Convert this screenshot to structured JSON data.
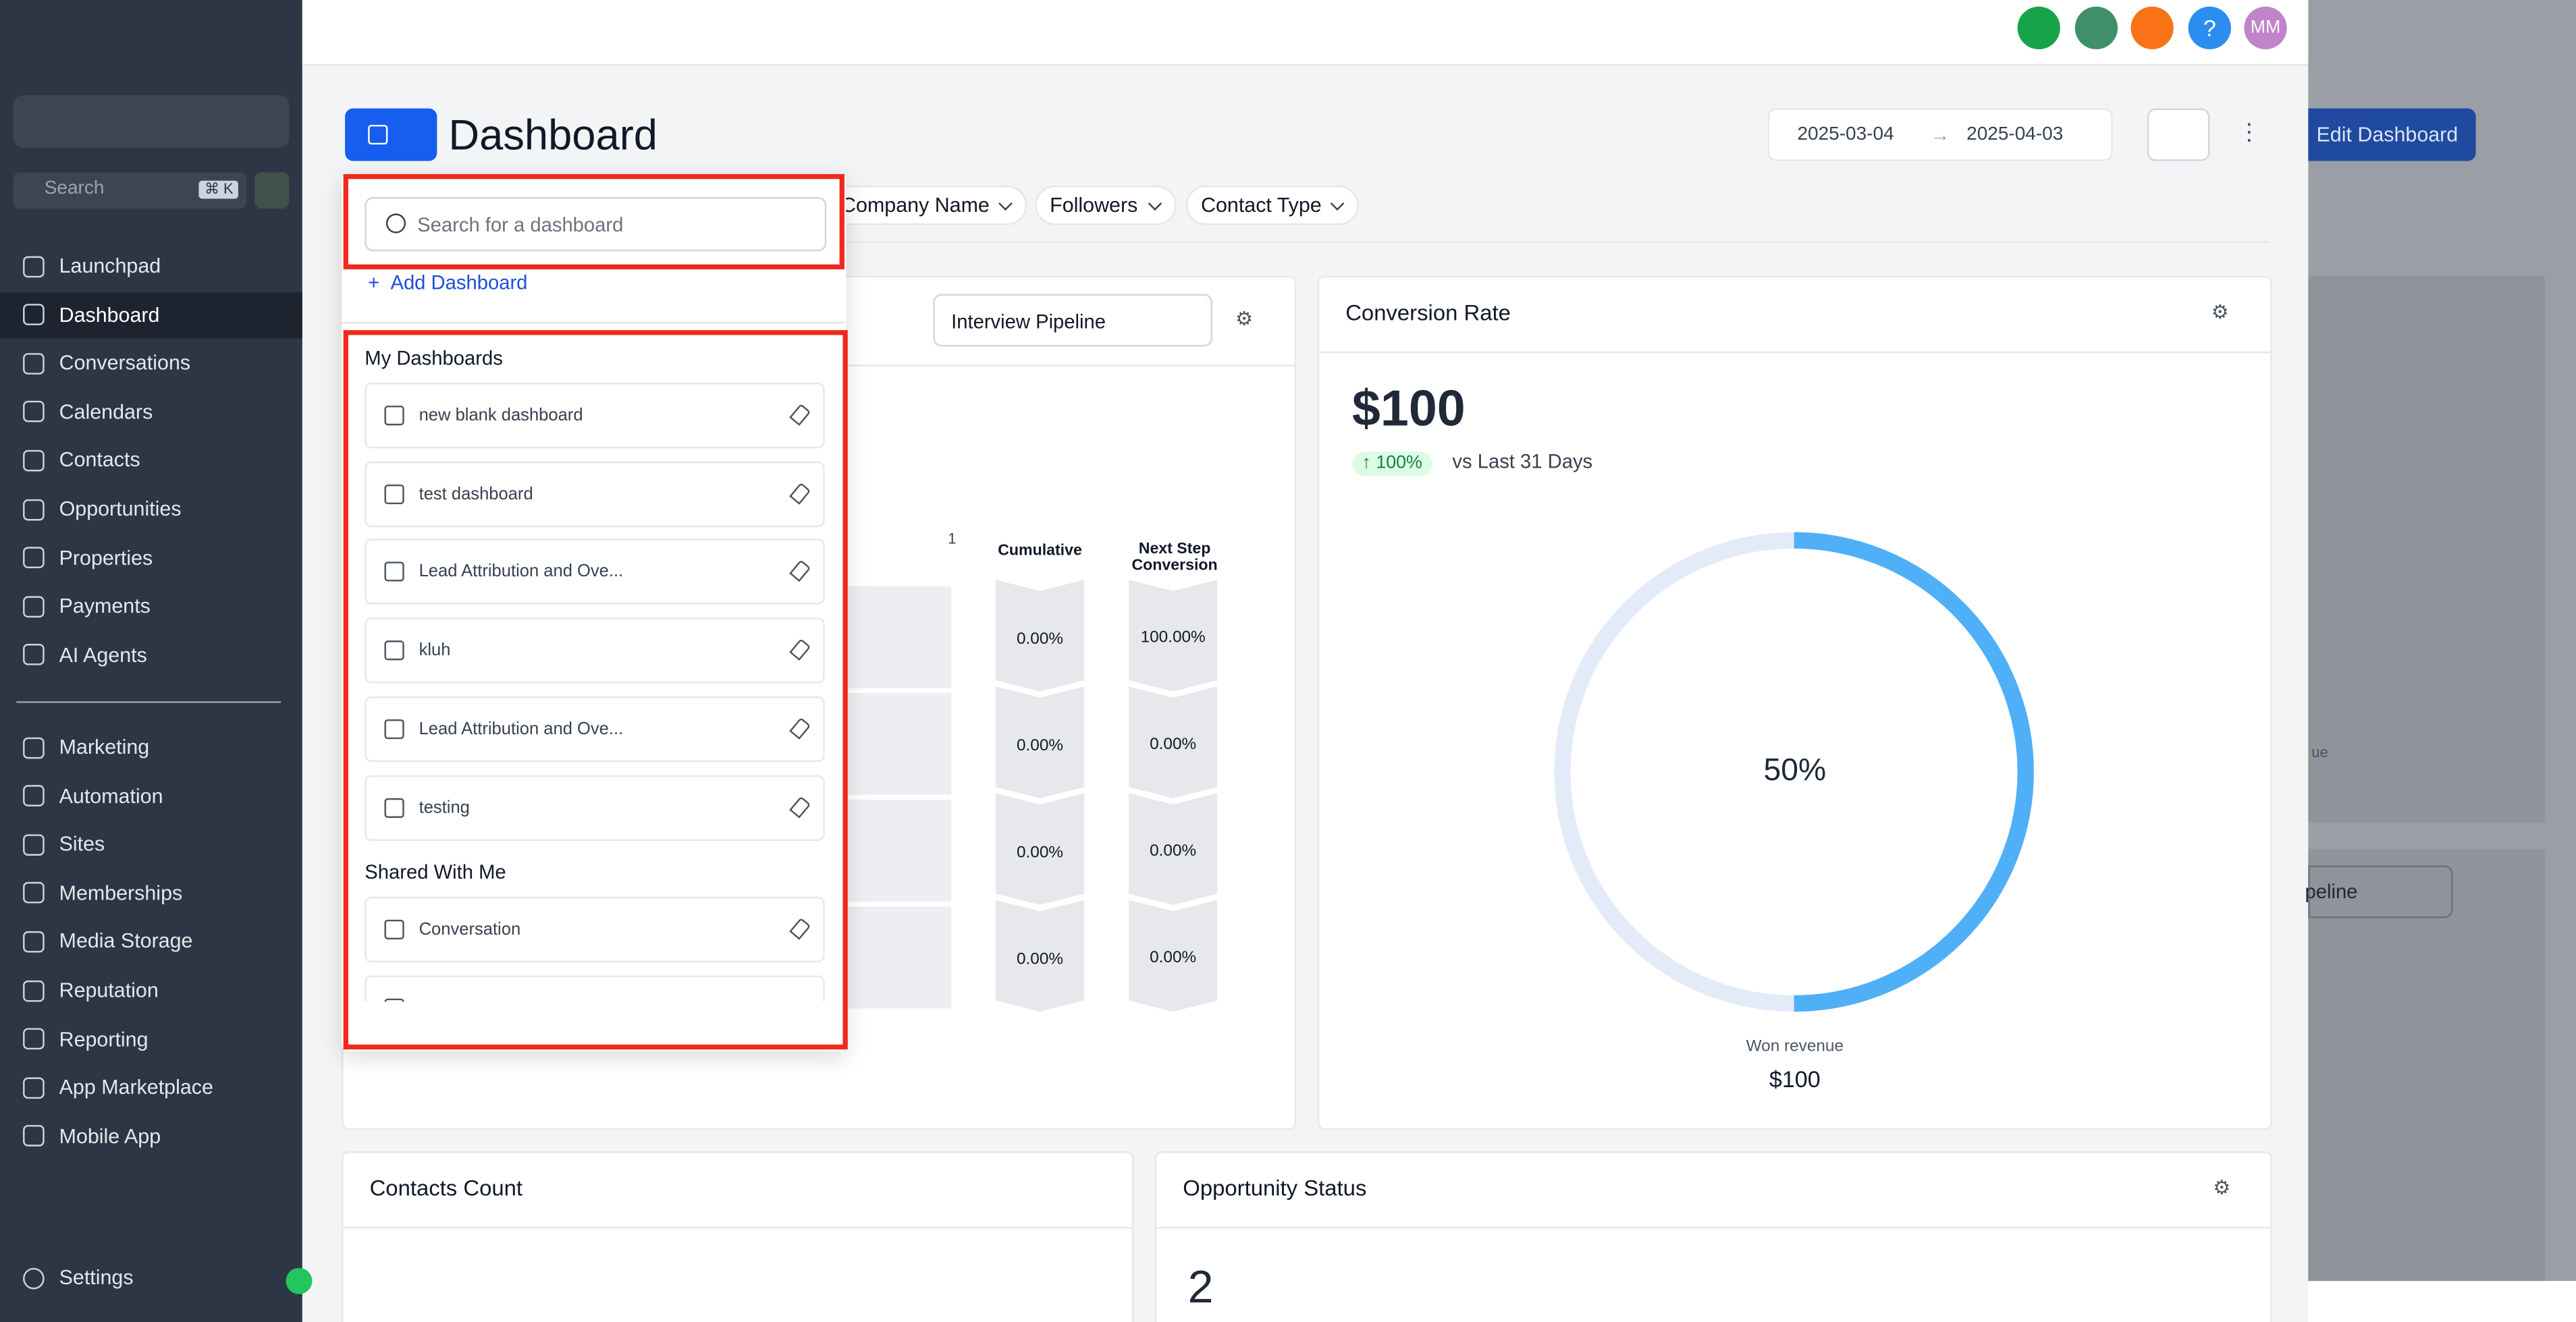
{
  "sidebar": {
    "search_placeholder": "Search",
    "shortcut": "⌘ K",
    "nav": [
      "Launchpad",
      "Dashboard",
      "Conversations",
      "Calendars",
      "Contacts",
      "Opportunities",
      "Properties",
      "Payments",
      "AI Agents"
    ],
    "nav2": [
      "Marketing",
      "Automation",
      "Sites",
      "Memberships",
      "Media Storage",
      "Reputation",
      "Reporting",
      "App Marketplace",
      "Mobile App"
    ],
    "settings": "Settings"
  },
  "topbar": {
    "help": "?",
    "avatar": "MM"
  },
  "header": {
    "title": "Dashboard",
    "date_start": "2025-03-04",
    "date_end": "2025-04-03",
    "edit_button": "Edit Dashboard"
  },
  "filters": [
    "Company Name",
    "Followers",
    "Contact Type"
  ],
  "dropdown": {
    "search_placeholder": "Search for a dashboard",
    "add": "Add Dashboard",
    "sections": [
      {
        "title": "My Dashboards",
        "items": [
          "new blank dashboard",
          "test dashboard",
          "Lead Attribution and Ove...",
          "kluh",
          "Lead Attribution and Ove...",
          "testing"
        ]
      },
      {
        "title": "Shared With Me",
        "items": [
          "Conversation"
        ]
      }
    ]
  },
  "funnel": {
    "select": "Interview Pipeline",
    "stage_label": "1",
    "columns": [
      "Cumulative",
      "Next Step Conversion"
    ],
    "rows": [
      [
        "0.00%",
        "100.00%"
      ],
      [
        "0.00%",
        "0.00%"
      ],
      [
        "0.00%",
        "0.00%"
      ],
      [
        "0.00%",
        "0.00%"
      ]
    ]
  },
  "conversion": {
    "title": "Conversion Rate",
    "value": "$100",
    "change": "100%",
    "period": "vs Last 31 Days",
    "center": "50%",
    "footer_label": "Won revenue",
    "footer_value": "$100"
  },
  "contacts": {
    "title": "Contacts Count"
  },
  "opportunity": {
    "title": "Opportunity Status",
    "value": "2"
  },
  "background": {
    "select": "peline",
    "label": "ue"
  }
}
